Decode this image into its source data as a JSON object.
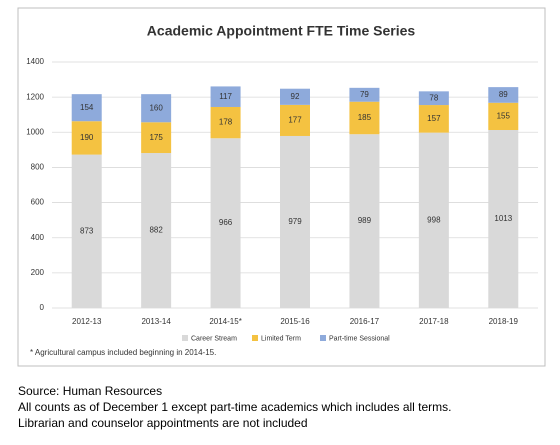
{
  "chart_data": {
    "type": "stacked_bar",
    "title": "Academic Appointment FTE Time Series",
    "categories": [
      "2012-13",
      "2013-14",
      "2014-15*",
      "2015-16",
      "2016-17",
      "2017-18",
      "2018-19"
    ],
    "series": [
      {
        "name": "Career Stream",
        "color": "#d9d9d9",
        "values": [
          873,
          882,
          966,
          979,
          989,
          998,
          1013
        ]
      },
      {
        "name": "Limited Term",
        "color": "#f4c241",
        "values": [
          190,
          175,
          178,
          177,
          185,
          157,
          155
        ]
      },
      {
        "name": "Part-time Sessional",
        "color": "#8eaadb",
        "values": [
          154,
          160,
          117,
          92,
          79,
          78,
          89
        ]
      }
    ],
    "ylim": [
      0,
      1400
    ],
    "yticks": [
      0,
      200,
      400,
      600,
      800,
      1000,
      1200,
      1400
    ],
    "grid": true,
    "legend": "bottom",
    "footnote": "* Agricultural campus included beginning in 2014-15."
  },
  "notes": [
    "Source: Human Resources",
    "All counts as of December 1 except part-time academics which includes all terms.",
    "Librarian and counselor appointments are not included"
  ]
}
